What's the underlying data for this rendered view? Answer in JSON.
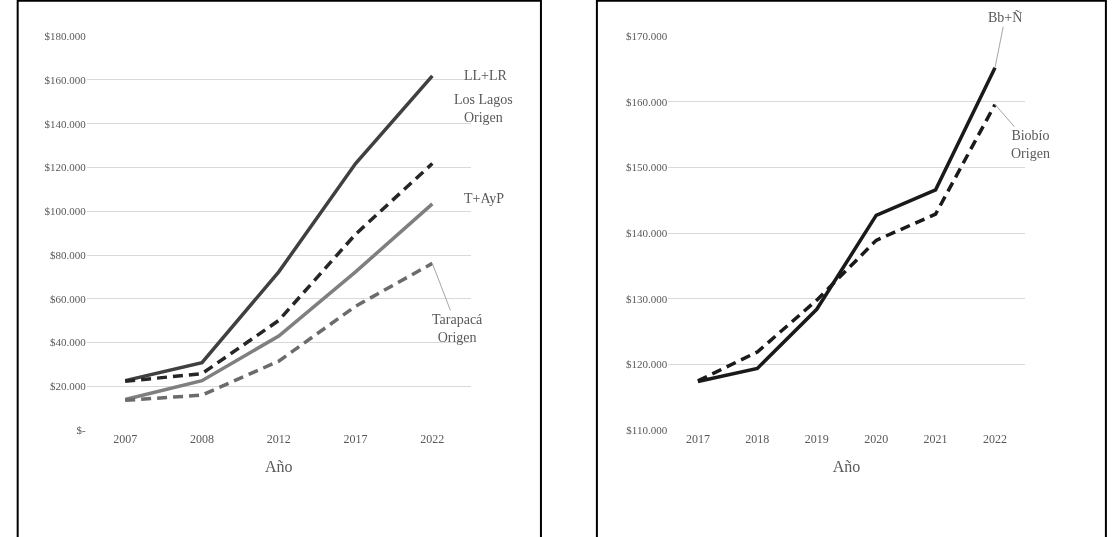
{
  "chart_data": [
    {
      "type": "line",
      "xlabel": "Año",
      "categories": [
        "2007",
        "2008",
        "2012",
        "2017",
        "2022"
      ],
      "ylim": [
        0,
        180000
      ],
      "yticks": [
        {
          "value": 0,
          "label": "$-"
        },
        {
          "value": 20000,
          "label": "$20.000"
        },
        {
          "value": 40000,
          "label": "$40.000"
        },
        {
          "value": 60000,
          "label": "$60.000"
        },
        {
          "value": 80000,
          "label": "$80.000"
        },
        {
          "value": 100000,
          "label": "$100.000"
        },
        {
          "value": 120000,
          "label": "$120.000"
        },
        {
          "value": 140000,
          "label": "$140.000"
        },
        {
          "value": 160000,
          "label": "$160.000"
        },
        {
          "value": 180000,
          "label": "$180.000"
        }
      ],
      "grid": "y",
      "marker": "none",
      "series": [
        {
          "name": "LL+LR",
          "color": "#404040",
          "line_style": "solid",
          "values": [
            22600,
            30800,
            72300,
            121800,
            161900
          ]
        },
        {
          "name": "Los Lagos\nOrigen",
          "color": "#262626",
          "line_style": "dashed",
          "values": [
            22300,
            25800,
            50100,
            89500,
            121800
          ]
        },
        {
          "name": "T+AyP",
          "color": "#7f7f7f",
          "line_style": "solid",
          "values": [
            14000,
            22600,
            43000,
            72300,
            103400
          ]
        },
        {
          "name": "Tarapacá\nOrigen",
          "color": "#6b6b6b",
          "line_style": "dashed",
          "values": [
            13600,
            16000,
            31500,
            56600,
            76200
          ]
        }
      ]
    },
    {
      "type": "line",
      "xlabel": "Año",
      "categories": [
        "2017",
        "2018",
        "2019",
        "2020",
        "2021",
        "2022"
      ],
      "ylim": [
        110000,
        170000
      ],
      "yticks": [
        {
          "value": 110000,
          "label": "$110.000"
        },
        {
          "value": 120000,
          "label": "$120.000"
        },
        {
          "value": 130000,
          "label": "$130.000"
        },
        {
          "value": 140000,
          "label": "$140.000"
        },
        {
          "value": 150000,
          "label": "$150.000"
        },
        {
          "value": 160000,
          "label": "$160.000"
        },
        {
          "value": 170000,
          "label": "$170.000"
        }
      ],
      "grid": "y",
      "marker": "none",
      "series": [
        {
          "name": "Bb+Ñ",
          "color": "#1a1a1a",
          "line_style": "solid",
          "values": [
            117400,
            119400,
            128400,
            142700,
            146600,
            165200
          ]
        },
        {
          "name": "Biobío\nOrigen",
          "color": "#1a1a1a",
          "line_style": "dashed",
          "values": [
            117500,
            121900,
            129800,
            138900,
            142900,
            159600
          ]
        }
      ]
    }
  ]
}
